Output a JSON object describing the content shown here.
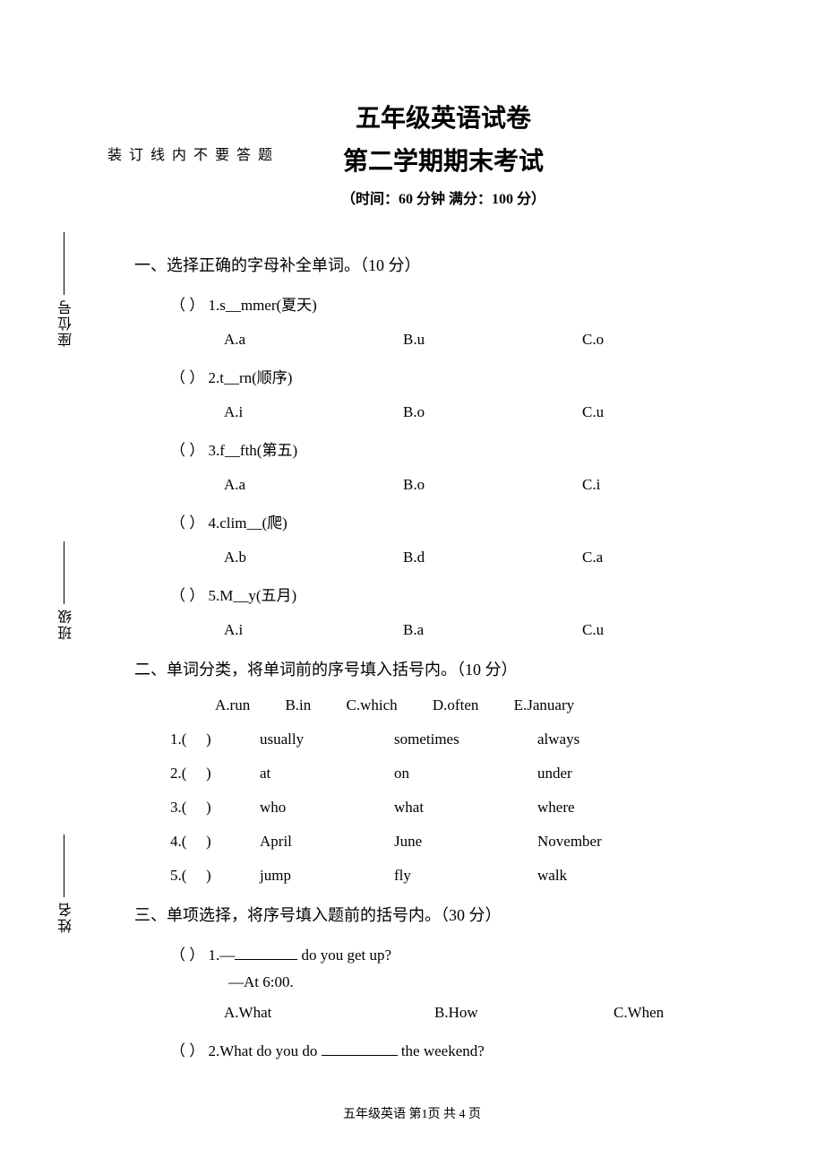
{
  "title": {
    "line1": "五年级英语试卷",
    "line2": "第二学期期末考试",
    "meta": "（时间：60 分钟  满分：100 分）"
  },
  "sections": {
    "s1": {
      "heading": "一、选择正确的字母补全单词。（10 分）",
      "questions": [
        {
          "bracket": "（        ）",
          "prompt": "1.s__mmer(夏天)",
          "a": "A.a",
          "b": "B.u",
          "c": "C.o"
        },
        {
          "bracket": "（        ）",
          "prompt": "2.t__rn(顺序)",
          "a": "A.i",
          "b": "B.o",
          "c": "C.u"
        },
        {
          "bracket": "（        ）",
          "prompt": "3.f__fth(第五)",
          "a": "A.a",
          "b": "B.o",
          "c": "C.i"
        },
        {
          "bracket": "（        ）",
          "prompt": "4.clim__(爬)",
          "a": "A.b",
          "b": "B.d",
          "c": "C.a"
        },
        {
          "bracket": "（        ）",
          "prompt": "5.M__y(五月)",
          "a": "A.i",
          "b": "B.a",
          "c": "C.u"
        }
      ]
    },
    "s2": {
      "heading": "二、单词分类，将单词前的序号填入括号内。（10 分）",
      "options": {
        "a": "A.run",
        "b": "B.in",
        "c": "C.which",
        "d": "D.often",
        "e": "E.January"
      },
      "rows": [
        {
          "num": "1.(",
          "blank": ")",
          "w1": "usually",
          "w2": "sometimes",
          "w3": "always"
        },
        {
          "num": "2.(",
          "blank": ")",
          "w1": "at",
          "w2": "on",
          "w3": "under"
        },
        {
          "num": "3.(",
          "blank": ")",
          "w1": "who",
          "w2": "what",
          "w3": "where"
        },
        {
          "num": "4.(",
          "blank": ")",
          "w1": "April",
          "w2": "June",
          "w3": "November"
        },
        {
          "num": "5.(",
          "blank": ")",
          "w1": "jump",
          "w2": "fly",
          "w3": "walk"
        }
      ]
    },
    "s3": {
      "heading": "三、单项选择，将序号填入题前的括号内。（30 分）",
      "q1": {
        "bracket": "（        ）",
        "line1_pre": "1.—",
        "line1_post": "do you get up?",
        "line2": "—At 6:00.",
        "a": "A.What",
        "b": "B.How",
        "c": "C.When"
      },
      "q2": {
        "bracket": "（        ）",
        "pre": "2.What do you do  ",
        "post": "  the weekend?"
      }
    }
  },
  "footer": "五年级英语  第1页  共 4 页",
  "binding": {
    "inner": [
      "题",
      "答",
      "要",
      "不",
      "内",
      "线",
      "订",
      "装"
    ],
    "outer": [
      "姓名",
      "班级",
      "座位号"
    ]
  }
}
